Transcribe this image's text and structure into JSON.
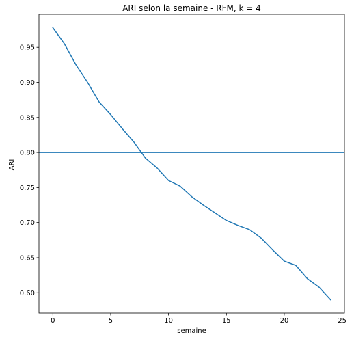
{
  "chart_data": {
    "type": "line",
    "title": "ARI selon la semaine - RFM, k = 4",
    "xlabel": "semaine",
    "ylabel": "ARI",
    "xlim": [
      -1.2,
      25.2
    ],
    "ylim": [
      0.571,
      0.997
    ],
    "xticks": [
      0,
      5,
      10,
      15,
      20,
      25
    ],
    "xtick_labels": [
      "0",
      "5",
      "10",
      "15",
      "20",
      "25"
    ],
    "yticks": [
      0.6,
      0.65,
      0.7,
      0.75,
      0.8,
      0.85,
      0.9,
      0.95
    ],
    "ytick_labels": [
      "0.60",
      "0.65",
      "0.70",
      "0.75",
      "0.80",
      "0.85",
      "0.90",
      "0.95"
    ],
    "grid": false,
    "series": [
      {
        "name": "ARI",
        "color": "#1f77b4",
        "x": [
          0,
          1,
          2,
          3,
          4,
          5,
          6,
          7,
          8,
          9,
          10,
          11,
          12,
          13,
          14,
          15,
          16,
          17,
          18,
          19,
          20,
          21,
          22,
          23,
          24
        ],
        "y": [
          0.978,
          0.955,
          0.925,
          0.9,
          0.872,
          0.854,
          0.834,
          0.815,
          0.792,
          0.778,
          0.76,
          0.752,
          0.737,
          0.725,
          0.714,
          0.703,
          0.696,
          0.69,
          0.678,
          0.661,
          0.645,
          0.639,
          0.62,
          0.608,
          0.59
        ]
      }
    ],
    "hlines": [
      {
        "y": 0.8,
        "color": "#1f77b4"
      }
    ]
  }
}
